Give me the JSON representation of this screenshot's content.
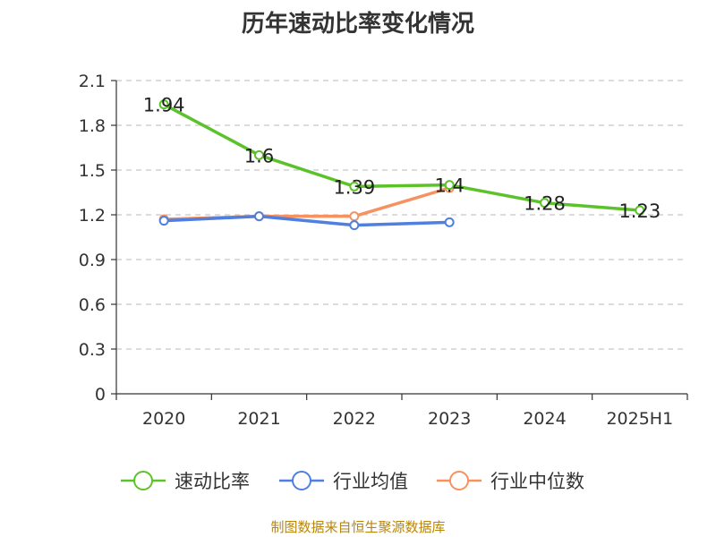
{
  "title": "历年速动比率变化情况",
  "source": "制图数据来自恒生聚源数据库",
  "chart_data": {
    "type": "line",
    "title": "历年速动比率变化情况",
    "categories": [
      "2020",
      "2021",
      "2022",
      "2023",
      "2024",
      "2025H1"
    ],
    "ylim": [
      0,
      2.1
    ],
    "yticks": [
      "0",
      "0.3",
      "0.6",
      "0.9",
      "1.2",
      "1.5",
      "1.8",
      "2.1"
    ],
    "grid": true,
    "legend_position": "bottom",
    "series": [
      {
        "name": "速动比率",
        "color": "#5cc22a",
        "values": [
          1.94,
          1.6,
          1.39,
          1.4,
          1.28,
          1.23
        ],
        "labels": [
          "1.94",
          "1.6",
          "1.39",
          "1.4",
          "1.28",
          "1.23"
        ]
      },
      {
        "name": "行业均值",
        "color": "#4f7fe0",
        "values": [
          1.16,
          1.19,
          1.13,
          1.15,
          null,
          null
        ]
      },
      {
        "name": "行业中位数",
        "color": "#f59260",
        "values": [
          1.17,
          1.19,
          1.19,
          1.38,
          null,
          null
        ]
      }
    ]
  }
}
